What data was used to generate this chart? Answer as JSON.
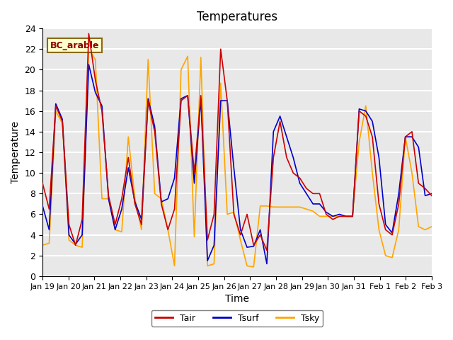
{
  "title": "Temperatures",
  "xlabel": "Time",
  "ylabel": "Temperature",
  "ylim": [
    0,
    24
  ],
  "annotation_text": "BC_arable",
  "bg_color": "#e8e8e8",
  "grid_color": "white",
  "tair_color": "#cc0000",
  "tsurf_color": "#0000cc",
  "tsky_color": "#ffa500",
  "legend_labels": [
    "Tair",
    "Tsurf",
    "Tsky"
  ],
  "tair": [
    9.0,
    6.5,
    16.5,
    15.0,
    5.0,
    3.0,
    5.5,
    23.5,
    19.0,
    16.0,
    7.8,
    5.0,
    7.5,
    11.5,
    7.0,
    5.0,
    17.0,
    14.0,
    7.0,
    4.5,
    6.5,
    17.0,
    17.5,
    10.0,
    17.5,
    3.5,
    6.0,
    22.0,
    17.0,
    6.0,
    4.0,
    6.0,
    3.0,
    4.0,
    2.5,
    11.5,
    15.0,
    11.5,
    10.0,
    9.5,
    8.5,
    8.0,
    8.0,
    6.0,
    5.5,
    5.8,
    5.8,
    5.8,
    16.0,
    15.5,
    13.5,
    7.0,
    4.5,
    4.0,
    7.0,
    13.5,
    14.0,
    9.0,
    8.5,
    7.8
  ],
  "tsurf": [
    6.8,
    4.5,
    16.7,
    15.2,
    4.0,
    3.1,
    4.0,
    20.5,
    17.8,
    16.5,
    7.5,
    4.5,
    6.5,
    10.5,
    7.2,
    5.5,
    17.2,
    14.5,
    7.2,
    7.5,
    9.5,
    17.2,
    17.5,
    9.0,
    17.2,
    1.5,
    3.0,
    17.0,
    17.0,
    10.5,
    4.5,
    2.8,
    2.9,
    4.5,
    1.2,
    14.0,
    15.5,
    13.5,
    11.5,
    9.0,
    8.0,
    7.0,
    7.0,
    6.2,
    5.8,
    6.0,
    5.8,
    5.8,
    16.2,
    16.0,
    15.0,
    11.5,
    5.0,
    4.2,
    8.0,
    13.5,
    13.5,
    12.5,
    7.8,
    8.0
  ],
  "tsky": [
    3.0,
    3.2,
    16.0,
    14.8,
    3.5,
    3.0,
    2.8,
    22.0,
    21.0,
    7.5,
    7.5,
    4.5,
    4.3,
    13.5,
    7.5,
    4.5,
    21.0,
    8.0,
    7.5,
    4.5,
    1.0,
    20.0,
    21.3,
    3.8,
    21.2,
    1.0,
    1.2,
    18.7,
    6.0,
    6.2,
    3.5,
    1.0,
    0.9,
    6.8,
    6.8,
    6.7,
    6.7,
    6.7,
    6.7,
    6.7,
    6.5,
    6.3,
    5.8,
    5.8,
    5.8,
    5.8,
    5.8,
    5.8,
    13.0,
    16.5,
    10.0,
    4.5,
    2.0,
    1.8,
    4.5,
    13.5,
    10.0,
    4.8,
    4.5,
    4.8
  ],
  "x_tick_labels": [
    "Jan 19",
    "Jan 20",
    "Jan 21",
    "Jan 22",
    "Jan 23",
    "Jan 24",
    "Jan 25",
    "Jan 26",
    "Jan 27",
    "Jan 28",
    "Jan 29",
    "Jan 30",
    "Jan 31",
    "Feb 1",
    "Feb 2",
    "Feb 3"
  ],
  "n_points": 60,
  "start_day": 19,
  "days_range": 15
}
